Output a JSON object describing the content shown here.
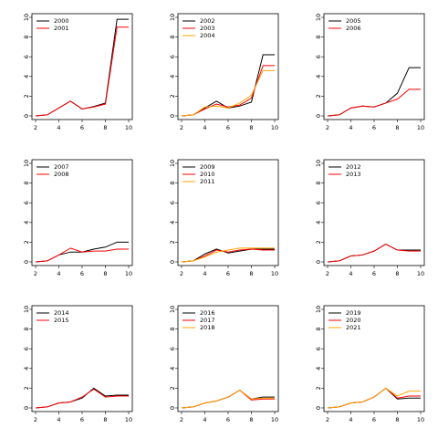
{
  "chart_data": [
    {
      "type": "line",
      "panel": "2000-2001",
      "x": [
        2,
        3,
        4,
        5,
        6,
        7,
        8,
        9,
        10
      ],
      "xlim": [
        2,
        10
      ],
      "ylim": [
        0,
        10
      ],
      "xticks": [
        2,
        4,
        6,
        8,
        10
      ],
      "yticks": [
        0,
        2,
        4,
        6,
        8,
        10
      ],
      "legend_position": "top-left",
      "series": [
        {
          "name": "2000",
          "color": "#000000",
          "values": [
            0,
            0.1,
            0.8,
            1.5,
            0.7,
            0.95,
            1.3,
            9.8,
            9.8
          ]
        },
        {
          "name": "2001",
          "color": "#ff0000",
          "values": [
            0,
            0.1,
            0.8,
            1.5,
            0.7,
            0.9,
            1.2,
            9.0,
            9.0
          ]
        }
      ]
    },
    {
      "type": "line",
      "panel": "2002-2004",
      "x": [
        2,
        3,
        4,
        5,
        6,
        7,
        8,
        9,
        10
      ],
      "xlim": [
        2,
        10
      ],
      "ylim": [
        0,
        10
      ],
      "xticks": [
        2,
        4,
        6,
        8,
        10
      ],
      "yticks": [
        0,
        2,
        4,
        6,
        8,
        10
      ],
      "legend_position": "top-left",
      "series": [
        {
          "name": "2002",
          "color": "#000000",
          "values": [
            0,
            0.1,
            0.8,
            1.5,
            0.8,
            1.0,
            1.4,
            6.2,
            6.2
          ]
        },
        {
          "name": "2003",
          "color": "#ff0000",
          "values": [
            0,
            0.1,
            0.7,
            1.2,
            0.9,
            1.1,
            1.8,
            5.1,
            5.1
          ]
        },
        {
          "name": "2004",
          "color": "#ffa500",
          "values": [
            0,
            0.1,
            0.9,
            1.0,
            0.8,
            1.3,
            2.1,
            4.6,
            4.6
          ]
        }
      ]
    },
    {
      "type": "line",
      "panel": "2005-2006",
      "x": [
        2,
        3,
        4,
        5,
        6,
        7,
        8,
        9,
        10
      ],
      "xlim": [
        2,
        10
      ],
      "ylim": [
        0,
        10
      ],
      "xticks": [
        2,
        4,
        6,
        8,
        10
      ],
      "yticks": [
        0,
        2,
        4,
        6,
        8,
        10
      ],
      "legend_position": "top-left",
      "series": [
        {
          "name": "2005",
          "color": "#000000",
          "values": [
            0,
            0.1,
            0.8,
            1.0,
            0.9,
            1.3,
            2.3,
            4.9,
            4.9
          ]
        },
        {
          "name": "2006",
          "color": "#ff0000",
          "values": [
            0,
            0.1,
            0.8,
            1.0,
            0.9,
            1.3,
            1.7,
            2.7,
            2.7
          ]
        }
      ]
    },
    {
      "type": "line",
      "panel": "2007-2008",
      "x": [
        2,
        3,
        4,
        5,
        6,
        7,
        8,
        9,
        10
      ],
      "xlim": [
        2,
        10
      ],
      "ylim": [
        0,
        10
      ],
      "xticks": [
        2,
        4,
        6,
        8,
        10
      ],
      "yticks": [
        0,
        2,
        4,
        6,
        8,
        10
      ],
      "legend_position": "top-left",
      "series": [
        {
          "name": "2007",
          "color": "#000000",
          "values": [
            0,
            0.1,
            0.7,
            1.0,
            1.0,
            1.3,
            1.5,
            2.0,
            2.0
          ]
        },
        {
          "name": "2008",
          "color": "#ff0000",
          "values": [
            0,
            0.1,
            0.7,
            1.4,
            1.0,
            1.1,
            1.1,
            1.3,
            1.3
          ]
        }
      ]
    },
    {
      "type": "line",
      "panel": "2009-2011",
      "x": [
        2,
        3,
        4,
        5,
        6,
        7,
        8,
        9,
        10
      ],
      "xlim": [
        2,
        10
      ],
      "ylim": [
        0,
        10
      ],
      "xticks": [
        2,
        4,
        6,
        8,
        10
      ],
      "yticks": [
        0,
        2,
        4,
        6,
        8,
        10
      ],
      "legend_position": "top-left",
      "series": [
        {
          "name": "2009",
          "color": "#000000",
          "values": [
            0,
            0.1,
            0.8,
            1.3,
            0.9,
            1.1,
            1.3,
            1.3,
            1.3
          ]
        },
        {
          "name": "2010",
          "color": "#ff0000",
          "values": [
            0,
            0.1,
            0.6,
            1.2,
            1.0,
            1.2,
            1.3,
            1.2,
            1.2
          ]
        },
        {
          "name": "2011",
          "color": "#ffa500",
          "values": [
            0,
            0.1,
            0.5,
            1.0,
            1.2,
            1.4,
            1.4,
            1.4,
            1.4
          ]
        }
      ]
    },
    {
      "type": "line",
      "panel": "2012-2013",
      "x": [
        2,
        3,
        4,
        5,
        6,
        7,
        8,
        9,
        10
      ],
      "xlim": [
        2,
        10
      ],
      "ylim": [
        0,
        10
      ],
      "xticks": [
        2,
        4,
        6,
        8,
        10
      ],
      "yticks": [
        0,
        2,
        4,
        6,
        8,
        10
      ],
      "legend_position": "top-left",
      "series": [
        {
          "name": "2012",
          "color": "#000000",
          "values": [
            0,
            0.1,
            0.6,
            0.7,
            1.1,
            1.8,
            1.2,
            1.2,
            1.2
          ]
        },
        {
          "name": "2013",
          "color": "#ff0000",
          "values": [
            0,
            0.1,
            0.6,
            0.7,
            1.1,
            1.8,
            1.2,
            1.1,
            1.1
          ]
        }
      ]
    },
    {
      "type": "line",
      "panel": "2014-2015",
      "x": [
        2,
        3,
        4,
        5,
        6,
        7,
        8,
        9,
        10
      ],
      "xlim": [
        2,
        10
      ],
      "ylim": [
        0,
        10
      ],
      "xticks": [
        2,
        4,
        6,
        8,
        10
      ],
      "yticks": [
        0,
        2,
        4,
        6,
        8,
        10
      ],
      "legend_position": "top-left",
      "series": [
        {
          "name": "2014",
          "color": "#000000",
          "values": [
            0,
            0.1,
            0.5,
            0.6,
            1.0,
            2.0,
            1.2,
            1.3,
            1.3
          ]
        },
        {
          "name": "2015",
          "color": "#ff0000",
          "values": [
            0,
            0.1,
            0.5,
            0.6,
            1.1,
            1.9,
            1.1,
            1.2,
            1.2
          ]
        }
      ]
    },
    {
      "type": "line",
      "panel": "2016-2018",
      "x": [
        2,
        3,
        4,
        5,
        6,
        7,
        8,
        9,
        10
      ],
      "xlim": [
        2,
        10
      ],
      "ylim": [
        0,
        10
      ],
      "xticks": [
        2,
        4,
        6,
        8,
        10
      ],
      "yticks": [
        0,
        2,
        4,
        6,
        8,
        10
      ],
      "legend_position": "top-left",
      "series": [
        {
          "name": "2016",
          "color": "#000000",
          "values": [
            0,
            0.1,
            0.5,
            0.7,
            1.1,
            1.8,
            0.9,
            1.1,
            1.1
          ]
        },
        {
          "name": "2017",
          "color": "#ff0000",
          "values": [
            0,
            0.1,
            0.5,
            0.7,
            1.1,
            1.8,
            0.8,
            0.9,
            0.9
          ]
        },
        {
          "name": "2018",
          "color": "#ffa500",
          "values": [
            0,
            0.1,
            0.5,
            0.7,
            1.1,
            1.8,
            0.9,
            1.0,
            1.0
          ]
        }
      ]
    },
    {
      "type": "line",
      "panel": "2019-2021",
      "x": [
        2,
        3,
        4,
        5,
        6,
        7,
        8,
        9,
        10
      ],
      "xlim": [
        2,
        10
      ],
      "ylim": [
        0,
        10
      ],
      "xticks": [
        2,
        4,
        6,
        8,
        10
      ],
      "yticks": [
        0,
        2,
        4,
        6,
        8,
        10
      ],
      "legend_position": "top-left",
      "series": [
        {
          "name": "2019",
          "color": "#000000",
          "values": [
            0,
            0.1,
            0.5,
            0.6,
            1.1,
            2.0,
            0.9,
            1.0,
            1.0
          ]
        },
        {
          "name": "2020",
          "color": "#ff0000",
          "values": [
            0,
            0.1,
            0.5,
            0.6,
            1.1,
            2.0,
            1.0,
            1.2,
            1.2
          ]
        },
        {
          "name": "2021",
          "color": "#ffa500",
          "values": [
            0,
            0.1,
            0.5,
            0.6,
            1.1,
            2.0,
            1.2,
            1.7,
            1.7
          ]
        }
      ]
    }
  ]
}
